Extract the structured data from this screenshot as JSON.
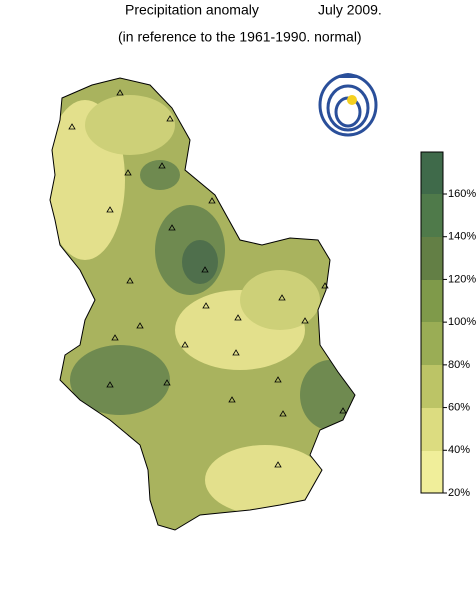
{
  "header": {
    "title": "Precipitation anomaly",
    "date": "July 2009.",
    "subtitle": "(in reference to the 1961-1990. normal)"
  },
  "legend": {
    "labels": [
      "160%",
      "140%",
      "120%",
      "100%",
      "80%",
      "60%",
      "40%",
      "20%"
    ]
  }
}
